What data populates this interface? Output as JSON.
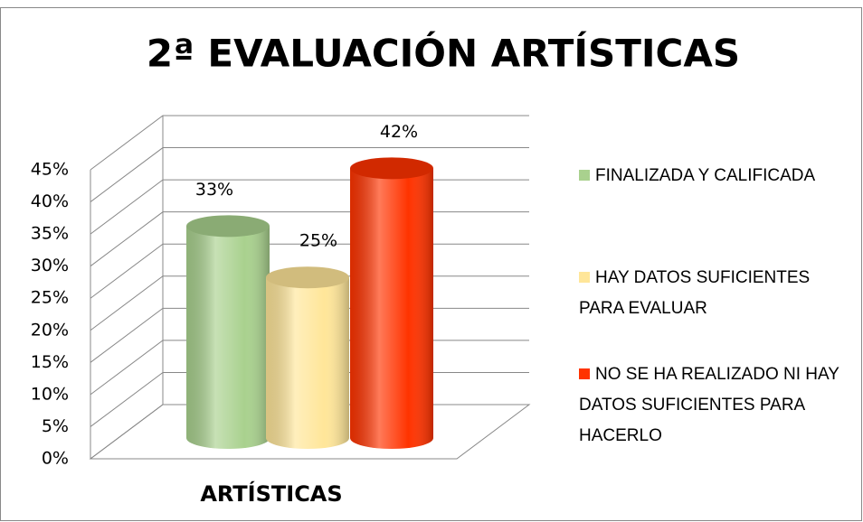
{
  "chart_data": {
    "type": "bar3d",
    "title": "2ª EVALUACIÓN ARTÍSTICAS",
    "categories": [
      "ARTÍSTICAS"
    ],
    "series": [
      {
        "name": "FINALIZADA Y CALIFICADA",
        "color": "#a9d18e",
        "values": [
          33
        ],
        "value_labels": [
          "33%"
        ]
      },
      {
        "name": "HAY DATOS SUFICIENTES PARA EVALUAR",
        "color": "#ffe699",
        "values": [
          25
        ],
        "value_labels": [
          "25%"
        ]
      },
      {
        "name": "NO SE HA REALIZADO NI HAY DATOS SUFICIENTES PARA HACERLO",
        "color": "#ff3300",
        "values": [
          42
        ],
        "value_labels": [
          "42%"
        ]
      }
    ],
    "ylim": [
      0,
      45
    ],
    "yticks": [
      {
        "value": 0,
        "label": "0%"
      },
      {
        "value": 5,
        "label": "5%"
      },
      {
        "value": 10,
        "label": "10%"
      },
      {
        "value": 15,
        "label": "15%"
      },
      {
        "value": 20,
        "label": "20%"
      },
      {
        "value": 25,
        "label": "25%"
      },
      {
        "value": 30,
        "label": "30%"
      },
      {
        "value": 35,
        "label": "35%"
      },
      {
        "value": 40,
        "label": "40%"
      },
      {
        "value": 45,
        "label": "45%"
      }
    ],
    "grid": true,
    "legend": "right"
  }
}
